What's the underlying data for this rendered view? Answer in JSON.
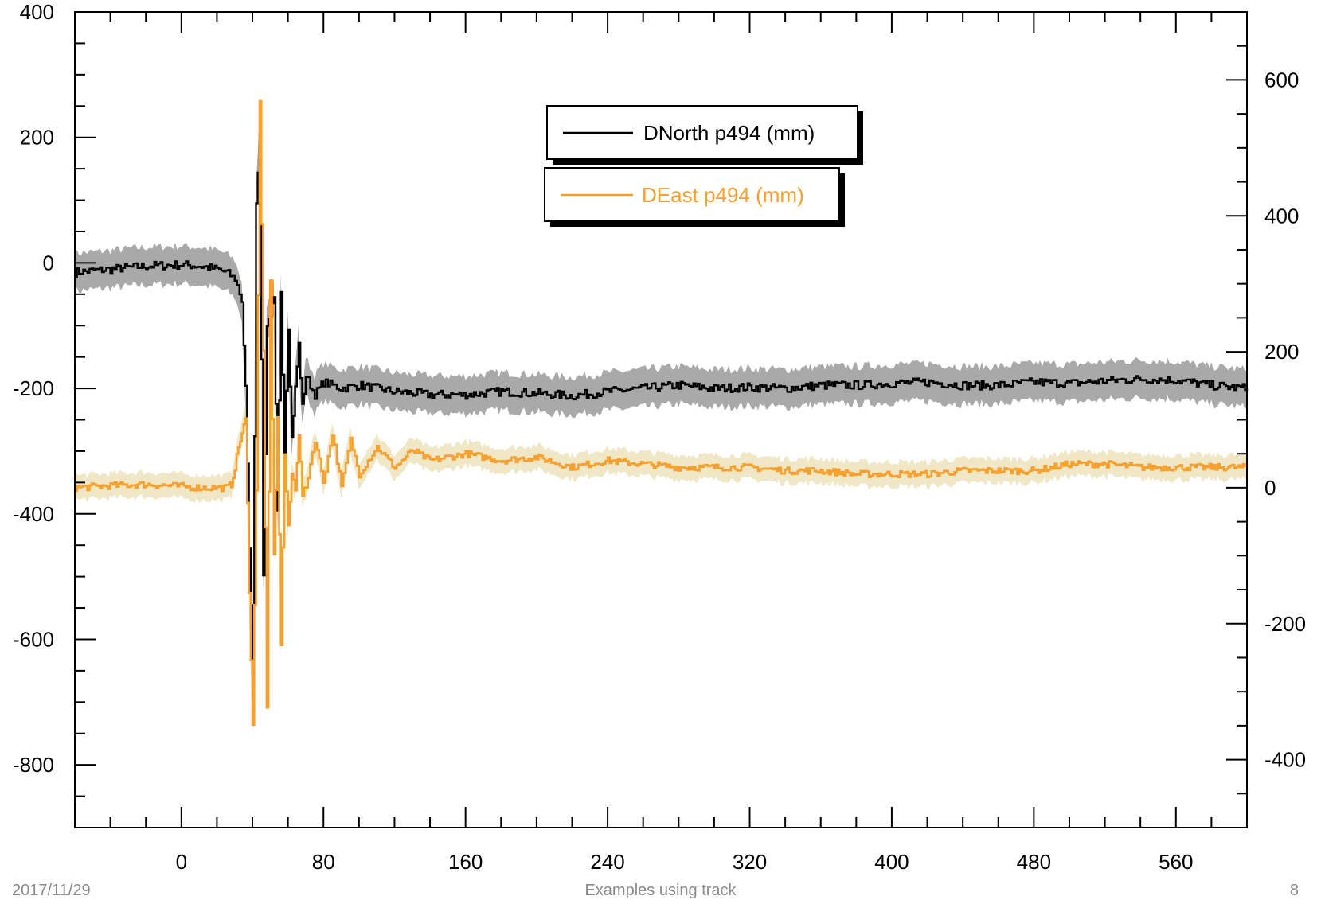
{
  "chart_data": {
    "type": "line",
    "title": "",
    "xlabel": "",
    "ylabel": "",
    "xlim": [
      -60,
      600
    ],
    "ylim_left": [
      -900,
      400
    ],
    "ylim_right": [
      -500,
      700
    ],
    "x_ticks": [
      "0",
      "80",
      "160",
      "240",
      "320",
      "400",
      "480",
      "560"
    ],
    "y_ticks_left": [
      "400",
      "200",
      "0",
      "-200",
      "-400",
      "-600",
      "-800"
    ],
    "y_ticks_right": [
      "600",
      "400",
      "200",
      "0",
      "-200",
      "-400"
    ],
    "grid": false,
    "legend_position": "top-center",
    "series": [
      {
        "name": "DNorth p494 (mm)",
        "axis": "left",
        "color": "#000000",
        "error_color": "#a9a9a9",
        "error_band": 30,
        "x": [
          -60,
          -40,
          -20,
          0,
          10,
          20,
          25,
          30,
          34,
          36,
          38,
          40,
          42,
          44,
          46,
          48,
          50,
          52,
          54,
          56,
          58,
          60,
          62,
          64,
          66,
          68,
          70,
          75,
          80,
          90,
          100,
          120,
          140,
          160,
          180,
          200,
          220,
          240,
          260,
          280,
          300,
          320,
          340,
          360,
          380,
          400,
          420,
          440,
          460,
          480,
          500,
          520,
          540,
          560,
          580,
          600
        ],
        "y": [
          -15,
          -10,
          -5,
          -3,
          -5,
          -10,
          -15,
          -25,
          -60,
          -200,
          -450,
          -650,
          100,
          200,
          -500,
          -100,
          -80,
          -60,
          -400,
          -50,
          -300,
          -100,
          -280,
          -200,
          -130,
          -230,
          -180,
          -210,
          -190,
          -200,
          -195,
          -205,
          -210,
          -210,
          -205,
          -208,
          -212,
          -205,
          -200,
          -195,
          -200,
          -198,
          -200,
          -195,
          -195,
          -192,
          -190,
          -195,
          -195,
          -190,
          -192,
          -188,
          -185,
          -187,
          -195,
          -200
        ]
      },
      {
        "name": "DEast p494 (mm)",
        "axis": "right",
        "color": "#f7a02d",
        "error_color": "#efe7c5",
        "error_band": 18,
        "x": [
          -60,
          -40,
          -20,
          0,
          10,
          20,
          25,
          28,
          30,
          32,
          34,
          36,
          38,
          40,
          42,
          44,
          46,
          48,
          50,
          52,
          54,
          56,
          58,
          60,
          62,
          64,
          66,
          68,
          70,
          75,
          80,
          85,
          90,
          95,
          100,
          110,
          120,
          130,
          140,
          160,
          180,
          200,
          220,
          240,
          260,
          280,
          300,
          320,
          340,
          360,
          380,
          400,
          420,
          440,
          460,
          480,
          500,
          520,
          540,
          560,
          580,
          600
        ],
        "y": [
          0,
          3,
          5,
          2,
          0,
          0,
          0,
          5,
          30,
          60,
          80,
          100,
          -150,
          -350,
          0,
          570,
          200,
          -320,
          300,
          -100,
          100,
          -230,
          50,
          -60,
          20,
          0,
          80,
          -10,
          0,
          70,
          10,
          80,
          0,
          70,
          20,
          60,
          30,
          55,
          40,
          50,
          40,
          45,
          30,
          40,
          35,
          30,
          30,
          30,
          25,
          25,
          20,
          20,
          20,
          25,
          25,
          25,
          35,
          35,
          30,
          30,
          30,
          30
        ]
      }
    ]
  },
  "footer": {
    "date": "2017/11/29",
    "title": "Examples using track",
    "page": "8"
  }
}
